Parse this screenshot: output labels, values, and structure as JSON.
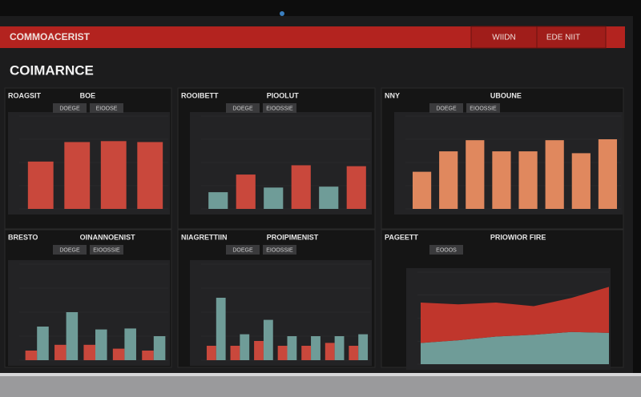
{
  "header": {
    "brand": "COMMOACERIST",
    "buttons": [
      "WIIDN",
      "EDE NIIT"
    ]
  },
  "title": "COIMARNCE",
  "panels": [
    {
      "title": "ROAGSIT",
      "subtitle": "BOE",
      "tabs": [
        "DOEGE",
        "EIOOSE"
      ],
      "chart": {
        "type": "bar",
        "ylim": [
          0,
          100
        ],
        "series": [
          {
            "color": "#c9483c",
            "values": [
              51,
              72,
              73,
              72
            ]
          }
        ]
      }
    },
    {
      "title": "ROOIBETT",
      "subtitle": "PIOOLUT",
      "tabs": [
        "DOEGE",
        "EIOOSSIE"
      ],
      "chart": {
        "type": "bar",
        "ylim": [
          0,
          100
        ],
        "series": [
          {
            "color": "#c9483c",
            "values": [
              18,
              37,
              23,
              47,
              24,
              46
            ]
          }
        ],
        "alt_color": "#6f9c98"
      }
    },
    {
      "title": "NNY",
      "subtitle": "UBOUNE",
      "tabs": [
        "DOEGE",
        "EIOOSSIE"
      ],
      "chart": {
        "type": "bar",
        "ylim": [
          0,
          100
        ],
        "series": [
          {
            "color": "#e0885e",
            "values": [
              40,
              62,
              74,
              62,
              62,
              74,
              60,
              75
            ]
          }
        ]
      }
    },
    {
      "title": "BRESTO",
      "subtitle": "OINANNOENIST",
      "tabs": [
        "DOEGE",
        "EIOOSSIE"
      ],
      "chart": {
        "type": "grouped",
        "ylim": [
          0,
          100
        ],
        "series": [
          {
            "color": "#c9483c",
            "values": [
              10,
              16,
              16,
              12,
              10
            ]
          },
          {
            "color": "#6f9c98",
            "values": [
              35,
              50,
              32,
              33,
              25
            ]
          }
        ]
      }
    },
    {
      "title": "NIAGRETTIIN",
      "subtitle": "PROIPIMENIST",
      "tabs": [
        "DOEGE",
        "EIOOSSIE"
      ],
      "chart": {
        "type": "grouped",
        "ylim": [
          0,
          100
        ],
        "series": [
          {
            "color": "#c9483c",
            "values": [
              15,
              15,
              20,
              15,
              15,
              18,
              15
            ]
          },
          {
            "color": "#6f9c98",
            "values": [
              65,
              27,
              42,
              25,
              25,
              25,
              27
            ]
          }
        ]
      }
    },
    {
      "title": "PAGEETT",
      "subtitle": "PRIOWIOR FIRE",
      "tabs": [
        "EOOOS"
      ],
      "chart": {
        "type": "area",
        "ylim": [
          0,
          100
        ],
        "series": [
          {
            "color": "#6f9c98",
            "values": [
              23,
              26,
              30,
              32,
              35,
              34
            ]
          },
          {
            "color": "#c0362c",
            "values": [
              44,
              39,
              37,
              31,
              37,
              50
            ]
          }
        ]
      }
    }
  ]
}
